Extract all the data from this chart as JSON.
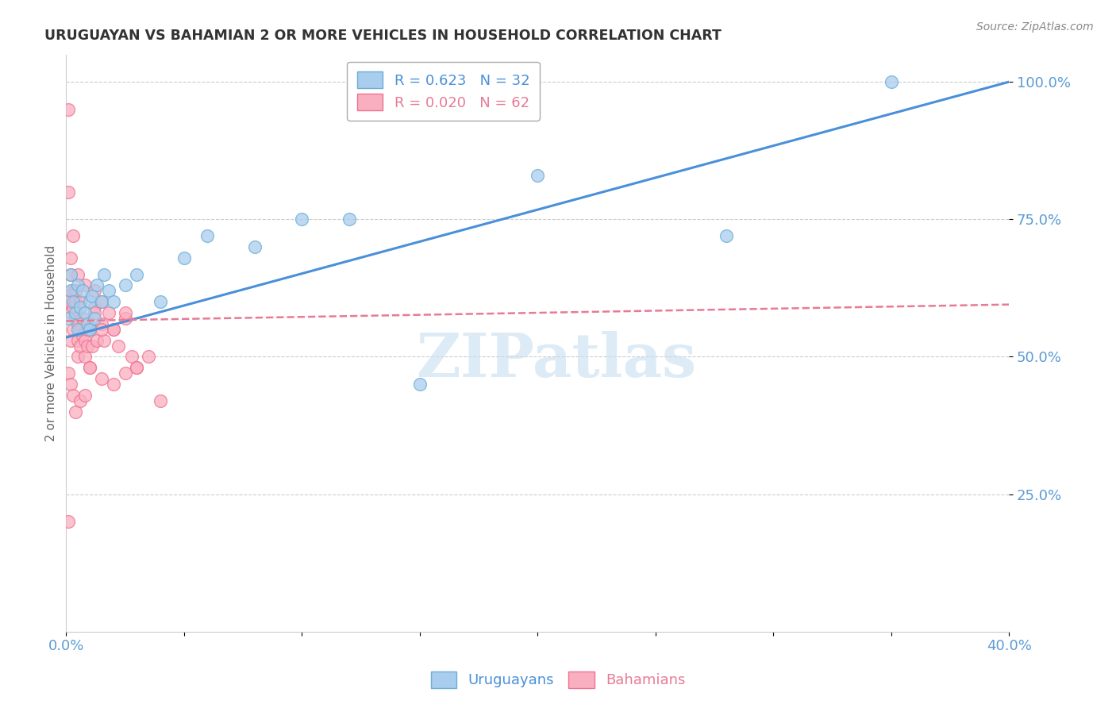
{
  "title": "URUGUAYAN VS BAHAMIAN 2 OR MORE VEHICLES IN HOUSEHOLD CORRELATION CHART",
  "source": "Source: ZipAtlas.com",
  "ylabel": "2 or more Vehicles in Household",
  "legend_label1": "Uruguayans",
  "legend_label2": "Bahamians",
  "R1": 0.623,
  "N1": 32,
  "R2": 0.02,
  "N2": 62,
  "xlim": [
    0.0,
    0.4
  ],
  "ylim": [
    0.0,
    1.05
  ],
  "yticks": [
    0.25,
    0.5,
    0.75,
    1.0
  ],
  "ytick_labels": [
    "25.0%",
    "50.0%",
    "75.0%",
    "100.0%"
  ],
  "xticks": [
    0.0,
    0.05,
    0.1,
    0.15,
    0.2,
    0.25,
    0.3,
    0.35,
    0.4
  ],
  "xtick_labels": [
    "0.0%",
    "",
    "",
    "",
    "",
    "",
    "",
    "",
    "40.0%"
  ],
  "color_uruguayan_face": "#A8CDED",
  "color_uruguayan_edge": "#6BAED6",
  "color_bahamian_face": "#FAAFC0",
  "color_bahamian_edge": "#F07090",
  "color_line_uruguayan": "#4A90D9",
  "color_line_bahamian": "#E87A95",
  "color_axis_labels": "#5B9BD5",
  "title_color": "#333333",
  "source_color": "#888888",
  "grid_color": "#cccccc",
  "watermark_color": "#C5DEF0",
  "uruguayan_x": [
    0.001,
    0.002,
    0.002,
    0.003,
    0.004,
    0.005,
    0.005,
    0.006,
    0.007,
    0.008,
    0.009,
    0.01,
    0.01,
    0.011,
    0.012,
    0.013,
    0.015,
    0.016,
    0.018,
    0.02,
    0.025,
    0.03,
    0.04,
    0.05,
    0.06,
    0.08,
    0.1,
    0.12,
    0.15,
    0.2,
    0.28,
    0.35
  ],
  "uruguayan_y": [
    0.57,
    0.62,
    0.65,
    0.6,
    0.58,
    0.55,
    0.63,
    0.59,
    0.62,
    0.58,
    0.56,
    0.55,
    0.6,
    0.61,
    0.57,
    0.63,
    0.6,
    0.65,
    0.62,
    0.6,
    0.63,
    0.65,
    0.6,
    0.68,
    0.72,
    0.7,
    0.75,
    0.75,
    0.45,
    0.83,
    0.72,
    1.0
  ],
  "bahamian_x": [
    0.001,
    0.001,
    0.001,
    0.002,
    0.002,
    0.002,
    0.003,
    0.003,
    0.003,
    0.004,
    0.004,
    0.005,
    0.005,
    0.005,
    0.006,
    0.006,
    0.007,
    0.007,
    0.008,
    0.008,
    0.009,
    0.01,
    0.01,
    0.011,
    0.012,
    0.013,
    0.015,
    0.015,
    0.016,
    0.018,
    0.02,
    0.022,
    0.025,
    0.028,
    0.03,
    0.035,
    0.04,
    0.003,
    0.005,
    0.008,
    0.01,
    0.012,
    0.015,
    0.02,
    0.025,
    0.002,
    0.004,
    0.006,
    0.009,
    0.012,
    0.001,
    0.002,
    0.003,
    0.004,
    0.006,
    0.008,
    0.01,
    0.015,
    0.02,
    0.025,
    0.03,
    0.001
  ],
  "bahamian_y": [
    0.95,
    0.8,
    0.6,
    0.65,
    0.58,
    0.53,
    0.62,
    0.59,
    0.55,
    0.6,
    0.57,
    0.53,
    0.5,
    0.56,
    0.55,
    0.52,
    0.54,
    0.57,
    0.53,
    0.5,
    0.52,
    0.48,
    0.55,
    0.52,
    0.59,
    0.53,
    0.6,
    0.56,
    0.53,
    0.58,
    0.55,
    0.52,
    0.57,
    0.5,
    0.48,
    0.5,
    0.42,
    0.72,
    0.65,
    0.63,
    0.55,
    0.58,
    0.55,
    0.55,
    0.58,
    0.68,
    0.62,
    0.6,
    0.55,
    0.62,
    0.47,
    0.45,
    0.43,
    0.4,
    0.42,
    0.43,
    0.48,
    0.46,
    0.45,
    0.47,
    0.48,
    0.2
  ],
  "blue_line_x": [
    0.0,
    0.4
  ],
  "blue_line_y": [
    0.535,
    1.0
  ],
  "pink_line_x": [
    0.0,
    0.4
  ],
  "pink_line_y": [
    0.565,
    0.595
  ]
}
